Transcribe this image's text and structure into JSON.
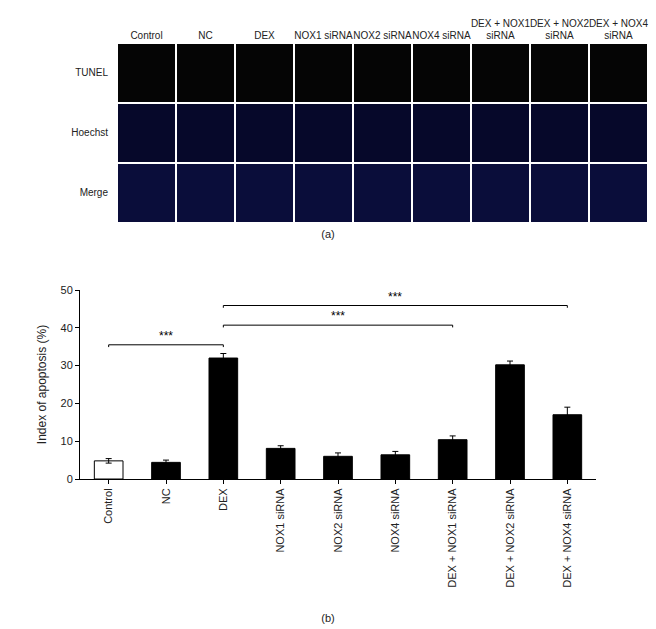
{
  "panel_a": {
    "label": "(a)",
    "columns": [
      "Control",
      "NC",
      "DEX",
      "NOX1 siRNA",
      "NOX2 siRNA",
      "NOX4 siRNA",
      "DEX + NOX1 siRNA",
      "DEX + NOX2 siRNA",
      "DEX + NOX4 siRNA"
    ],
    "rows": [
      "TUNEL",
      "Hoechst",
      "Merge"
    ]
  },
  "chart_data": {
    "type": "bar",
    "label": "(b)",
    "y_label": "Index of apoptosis (%)",
    "categories": [
      "Control",
      "NC",
      "DEX",
      "NOX1 siRNA",
      "NOX2 siRNA",
      "NOX4 siRNA",
      "DEX + NOX1 siRNA",
      "DEX + NOX2 siRNA",
      "DEX + NOX4 siRNA"
    ],
    "values": [
      4.8,
      4.4,
      32,
      8.1,
      6,
      6.4,
      10.4,
      30.2,
      17
    ],
    "errors": [
      0.6,
      0.6,
      1.2,
      0.7,
      0.9,
      0.9,
      1.0,
      1.0,
      2.0
    ],
    "colors": [
      "#ffffff",
      "#000000",
      "#000000",
      "#000000",
      "#000000",
      "#000000",
      "#000000",
      "#000000",
      "#000000"
    ],
    "ylim": [
      0,
      50
    ],
    "yticks": [
      0,
      10,
      20,
      30,
      40,
      50
    ],
    "grid": false,
    "significance": [
      {
        "from": "Control",
        "to": "DEX",
        "label": "***",
        "y": 35.5
      },
      {
        "from": "DEX",
        "to": "DEX + NOX1 siRNA",
        "label": "***",
        "y": 40.7
      },
      {
        "from": "DEX",
        "to": "DEX + NOX4 siRNA",
        "label": "***",
        "y": 45.9
      }
    ]
  }
}
